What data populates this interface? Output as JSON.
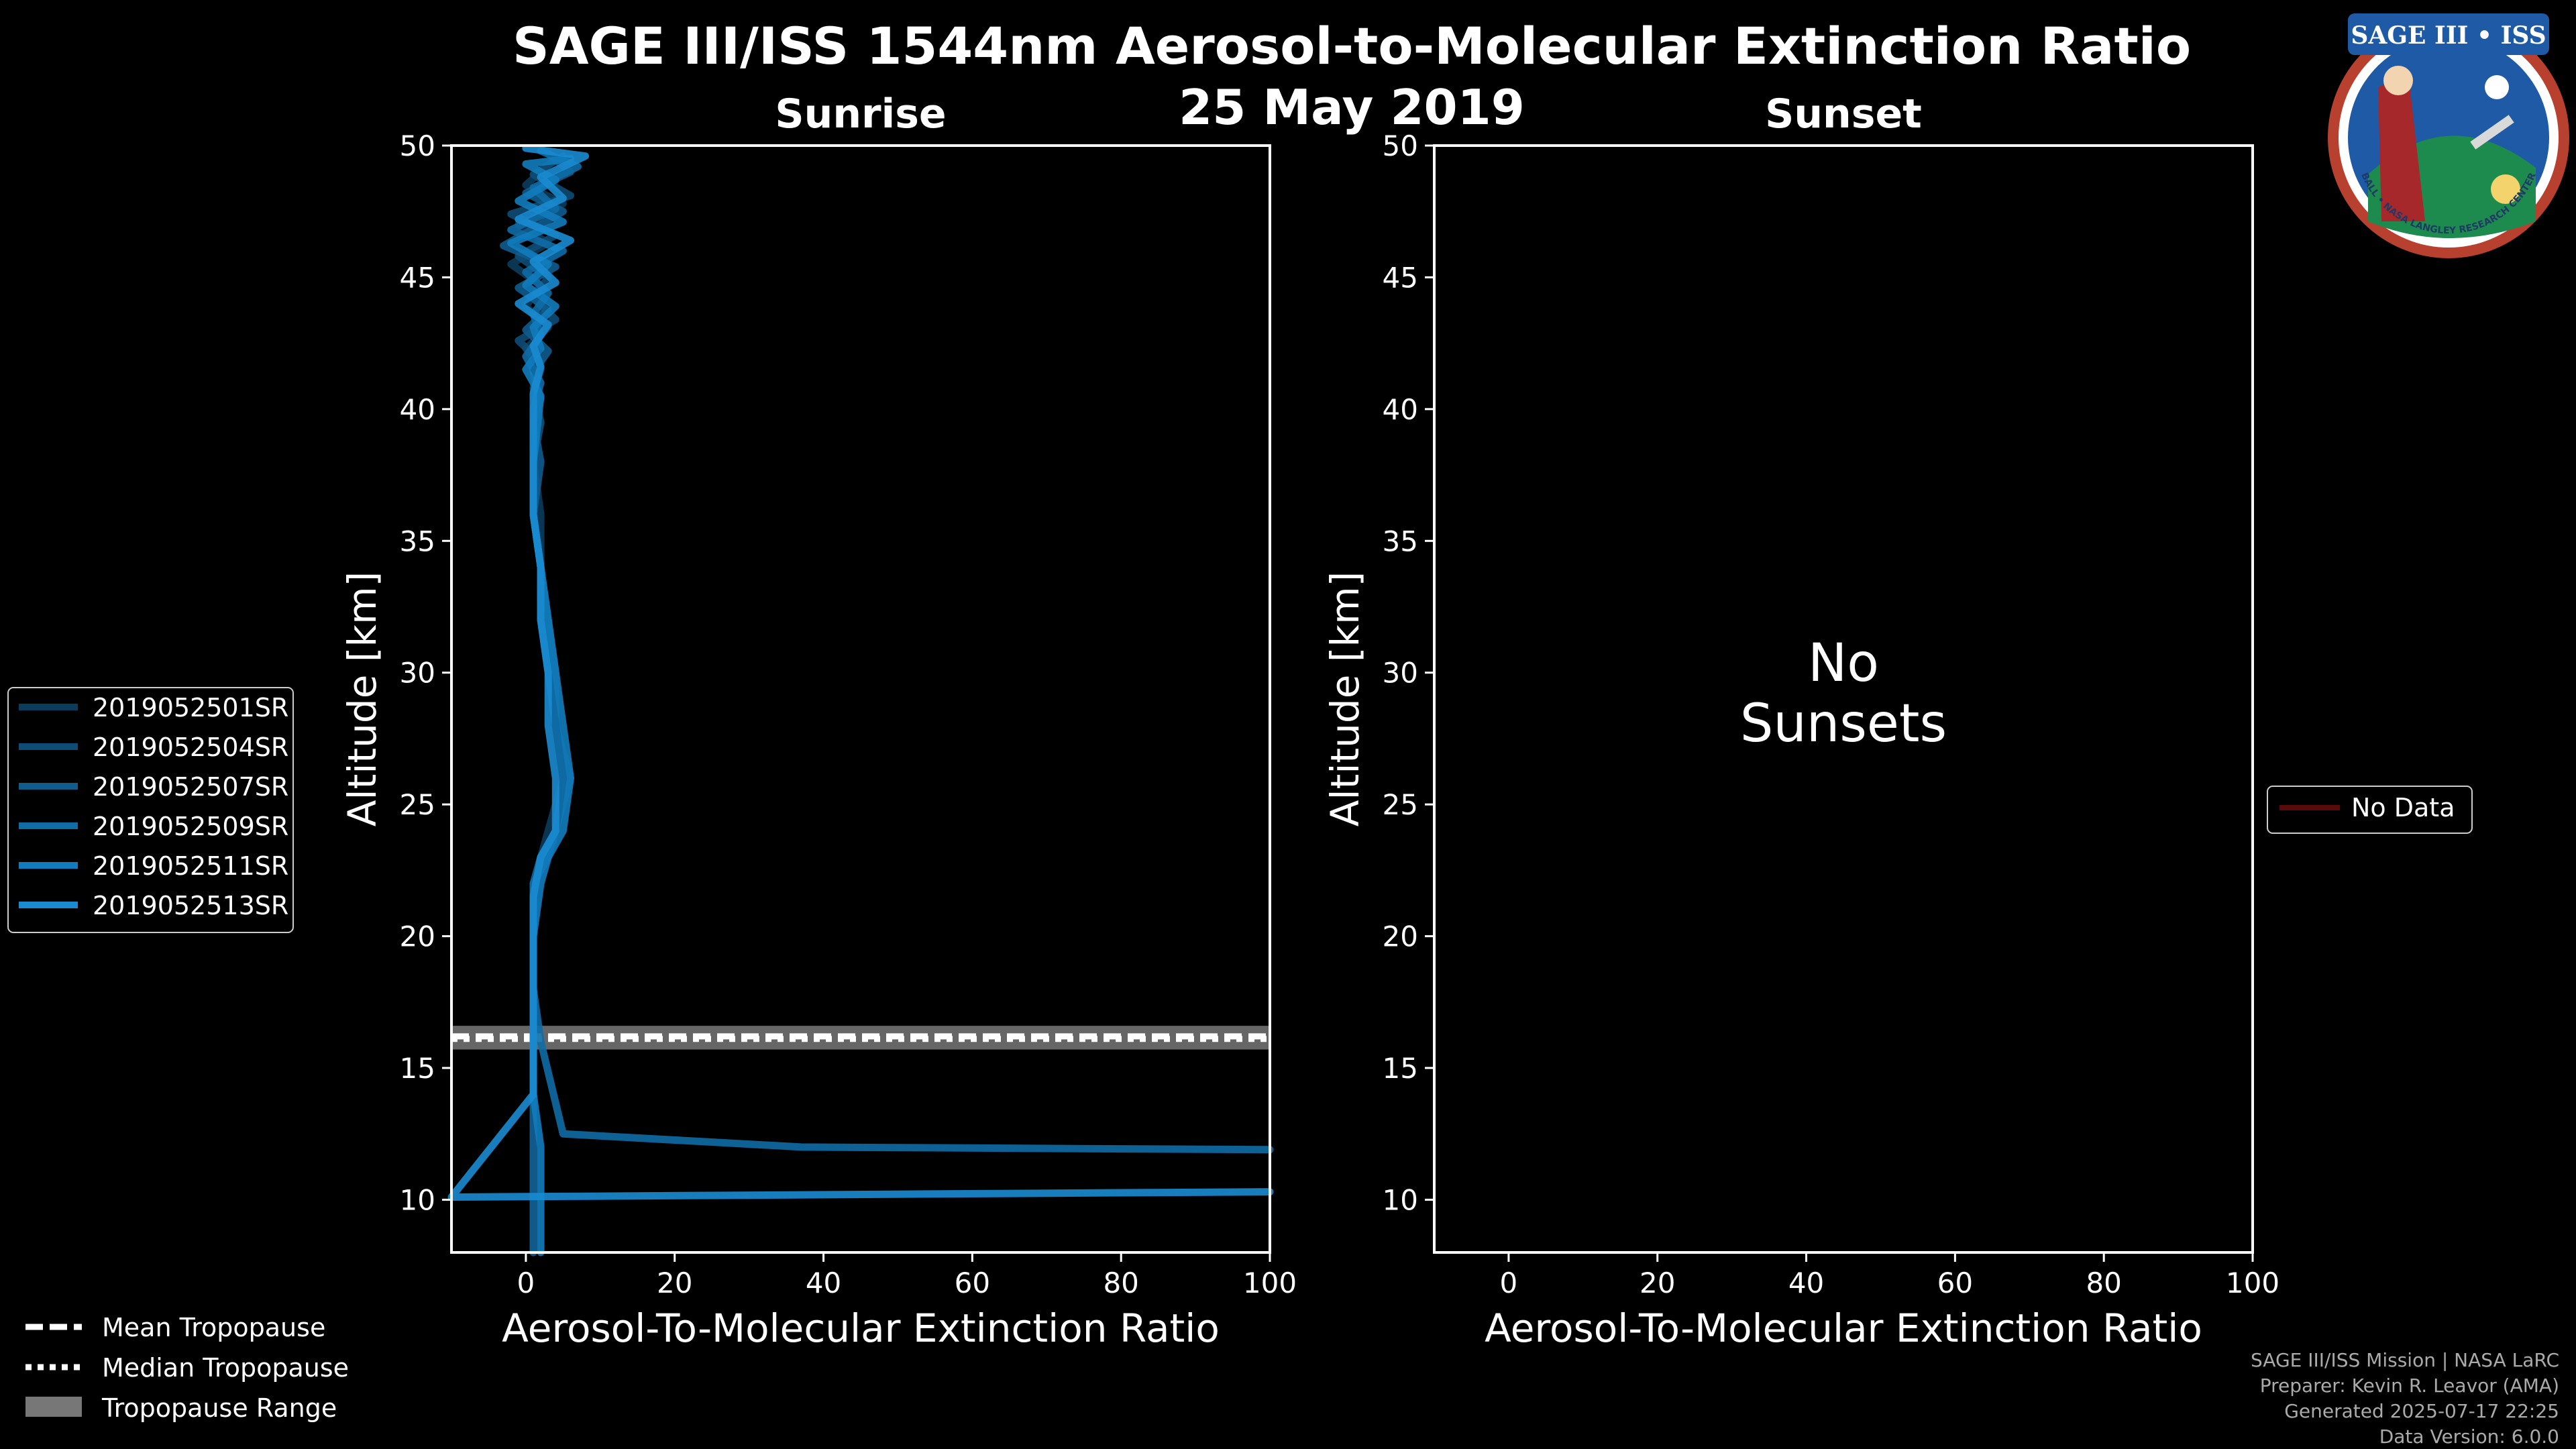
{
  "figure": {
    "title": "SAGE III/ISS 1544nm Aerosol-to-Molecular Extinction Ratio",
    "date": "25 May 2019"
  },
  "logo": {
    "text": "SAGE III • ISS",
    "ring_text": "BALL • NASA LANGLEY RESEARCH CENTER • TAS • ESA"
  },
  "chart_data": [
    {
      "type": "line",
      "title": "Sunrise",
      "xlabel": "Aerosol-To-Molecular Extinction Ratio",
      "ylabel": "Altitude [km]",
      "xlim": [
        -10,
        100
      ],
      "ylim": [
        8,
        50
      ],
      "xticks": [
        0,
        20,
        40,
        60,
        80,
        100
      ],
      "yticks": [
        10,
        15,
        20,
        25,
        30,
        35,
        40,
        45,
        50
      ],
      "tropopause": {
        "mean": 16.2,
        "median": 16.1,
        "range": [
          15.7,
          16.6
        ]
      },
      "series": [
        {
          "name": "2019052501SR",
          "color": "#0c3c5c",
          "x": [
            4,
            0,
            5,
            -1,
            3,
            -2,
            2,
            0,
            3,
            0,
            2,
            1,
            2,
            1,
            2,
            2,
            3,
            3,
            4,
            5,
            3,
            2,
            1,
            1,
            1,
            1,
            1,
            1,
            1,
            1
          ],
          "y": [
            49.5,
            48.5,
            47.8,
            47,
            46.3,
            45.5,
            44.7,
            43.9,
            43.1,
            42.3,
            41.5,
            40.5,
            39.5,
            38,
            36,
            34,
            32,
            30,
            28,
            26,
            24,
            23,
            22,
            20,
            18,
            16,
            14,
            12,
            10,
            8
          ]
        },
        {
          "name": "2019052504SR",
          "color": "#0e4c75",
          "x": [
            5,
            1,
            6,
            -2,
            4,
            -1,
            3,
            1,
            4,
            -1,
            2,
            1,
            2,
            1,
            1,
            2,
            3,
            4,
            4,
            6,
            4,
            2,
            1,
            1,
            1,
            1,
            1,
            1,
            1,
            1
          ],
          "y": [
            49.6,
            48.9,
            48.1,
            47.4,
            46.6,
            45.8,
            45,
            44.2,
            43.4,
            42.6,
            41.8,
            40.8,
            39.5,
            38,
            36,
            34,
            32,
            30,
            28,
            26,
            24,
            23,
            22,
            20,
            18,
            16,
            14,
            12,
            10,
            8
          ]
        },
        {
          "name": "2019052507SR",
          "color": "#0f5c8d",
          "x": [
            3,
            6,
            0,
            5,
            -3,
            4,
            -1,
            3,
            0,
            3,
            1,
            2,
            1,
            2,
            1,
            2,
            2,
            3,
            4,
            5,
            4,
            2,
            1,
            1,
            1,
            1,
            1,
            1,
            1,
            1
          ],
          "y": [
            49.7,
            49,
            48.2,
            47.5,
            46.2,
            45.4,
            44.6,
            43.8,
            43,
            42.2,
            41.4,
            40.4,
            39.5,
            38,
            36,
            34,
            32,
            30,
            28,
            26,
            24,
            23,
            22,
            20,
            18,
            16,
            14,
            12,
            10,
            8
          ]
        },
        {
          "name": "2019052509SR",
          "color": "#106ca5",
          "x": [
            2,
            7,
            1,
            4,
            -2,
            5,
            0,
            3,
            1,
            2,
            0,
            2,
            1,
            1,
            1,
            2,
            2,
            3,
            4,
            5,
            4,
            3,
            1,
            1,
            1,
            2,
            5,
            37,
            100
          ],
          "y": [
            49.8,
            49.2,
            48.4,
            47.6,
            46.8,
            46,
            45.2,
            44.4,
            43.6,
            42.8,
            42,
            41,
            40,
            38,
            36,
            34,
            32,
            30,
            28,
            26,
            24,
            23,
            22,
            20,
            18,
            16,
            12.5,
            12,
            11.9
          ]
        },
        {
          "name": "2019052511SR",
          "color": "#117cbd",
          "x": [
            6,
            0,
            4,
            -1,
            5,
            -2,
            3,
            0,
            4,
            1,
            2,
            0,
            2,
            1,
            1,
            2,
            3,
            4,
            5,
            6,
            5,
            3,
            2,
            1,
            1,
            1,
            1,
            2,
            2
          ],
          "y": [
            49.5,
            49.3,
            48.7,
            47.9,
            47.1,
            46.3,
            45.5,
            44.7,
            43.9,
            43.1,
            42.3,
            41.5,
            40.5,
            38,
            36,
            34,
            32,
            30,
            28,
            26,
            24,
            23,
            22,
            20,
            18,
            16,
            14,
            12,
            8
          ]
        },
        {
          "name": "2019052513SR",
          "color": "#1a8bd0",
          "x": [
            0,
            8,
            2,
            5,
            -1,
            6,
            1,
            4,
            -1,
            3,
            1,
            2,
            1,
            1,
            1,
            2,
            2,
            3,
            3,
            4,
            4,
            2,
            1,
            1,
            1,
            1,
            -10,
            100
          ],
          "y": [
            49.9,
            49.6,
            48.8,
            48,
            47.2,
            46.4,
            45.6,
            44.8,
            44,
            43.2,
            42.4,
            41.6,
            40.6,
            38.5,
            36,
            34,
            32,
            30,
            28,
            26,
            24,
            23,
            21.5,
            19,
            17,
            14,
            10.1,
            10.3
          ]
        }
      ]
    },
    {
      "type": "line",
      "title": "Sunset",
      "xlabel": "Aerosol-To-Molecular Extinction Ratio",
      "ylabel": "Altitude [km]",
      "xlim": [
        -10,
        100
      ],
      "ylim": [
        8,
        50
      ],
      "xticks": [
        0,
        20,
        40,
        60,
        80,
        100
      ],
      "yticks": [
        10,
        15,
        20,
        25,
        30,
        35,
        40,
        45,
        50
      ],
      "annotation": [
        "No",
        "Sunsets"
      ],
      "series": [
        {
          "name": "No Data",
          "color": "#5a0a0a",
          "x": [],
          "y": []
        }
      ]
    }
  ],
  "legends": {
    "tropopause": [
      {
        "label": "Mean Tropopause",
        "style": "dashed"
      },
      {
        "label": "Median Tropopause",
        "style": "dotted"
      },
      {
        "label": "Tropopause Range",
        "style": "band"
      }
    ]
  },
  "footer": [
    "SAGE III/ISS Mission | NASA LaRC",
    "Preparer: Kevin R. Leavor (AMA)",
    "Generated 2025-07-17 22:25",
    "Data Version: 6.0.0"
  ]
}
